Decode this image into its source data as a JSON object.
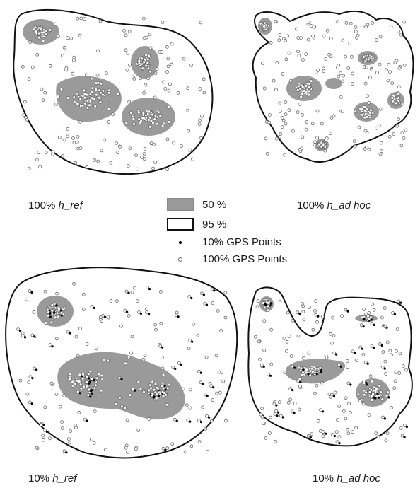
{
  "panels": [
    {
      "id": "top-left",
      "pct": "100%",
      "bandwidth": "h_ref"
    },
    {
      "id": "top-right",
      "pct": "100%",
      "bandwidth": "h_ad hoc"
    },
    {
      "id": "bottom-left",
      "pct": "10%",
      "bandwidth": "h_ref"
    },
    {
      "id": "bottom-right",
      "pct": "10%",
      "bandwidth": "h_ad hoc"
    }
  ],
  "legend": {
    "items": [
      {
        "label": "50 %",
        "symbol": "gray-filled-box"
      },
      {
        "label": "95 %",
        "symbol": "black-outline-box"
      },
      {
        "label": "10% GPS Points",
        "symbol": "black-dot"
      },
      {
        "label": "100% GPS Points",
        "symbol": "open-circle"
      }
    ]
  },
  "colors": {
    "core_fill": "#9a9a9a",
    "contour_line": "#111111",
    "point_10": "#000000",
    "point_100_stroke": "#666666"
  }
}
